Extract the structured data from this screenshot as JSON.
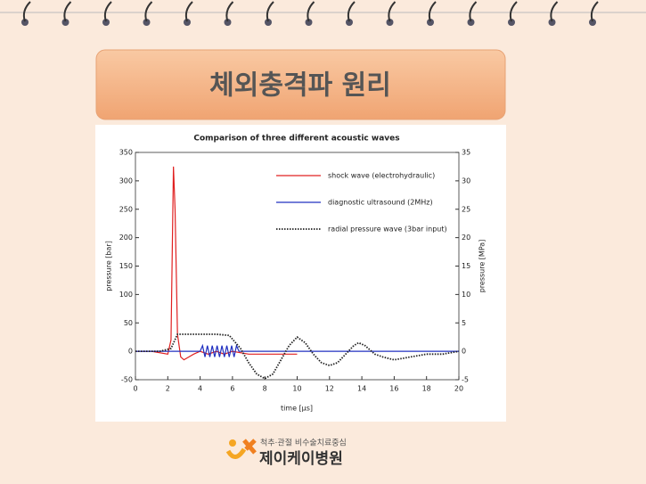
{
  "slide": {
    "title": "체외충격파 원리",
    "logo_tagline": "척추·관절 비수술치료중심",
    "logo_name": "제이케이병원"
  },
  "chart_data": {
    "type": "line",
    "title": "Comparison of three different acoustic waves",
    "x_label": "time [μs]",
    "y_label": "pressure [bar]",
    "y2_label": "pressure [MPa]",
    "xlim": [
      0,
      20
    ],
    "xticks": [
      0,
      2,
      4,
      6,
      8,
      10,
      12,
      14,
      16,
      18,
      20
    ],
    "ylim": [
      -50,
      350
    ],
    "yticks": [
      -50,
      0,
      50,
      100,
      150,
      200,
      250,
      300,
      350
    ],
    "y2lim": [
      -5,
      35
    ],
    "y2ticks": [
      -5,
      0,
      5,
      10,
      15,
      20,
      25,
      30,
      35
    ],
    "legend": "upper right",
    "grid": false,
    "series": [
      {
        "name": "shock wave (electrohydraulic)",
        "color": "#e02020",
        "style": "solid",
        "x": [
          0,
          1,
          2,
          2.2,
          2.35,
          2.45,
          2.6,
          2.8,
          3,
          3.3,
          3.6,
          4,
          4.5,
          5,
          5.5,
          6,
          7,
          8,
          9,
          10
        ],
        "values": [
          0,
          0,
          -5,
          20,
          325,
          250,
          30,
          -10,
          -15,
          -10,
          -5,
          0,
          -5,
          0,
          -5,
          0,
          -5,
          -5,
          -5,
          -5
        ]
      },
      {
        "name": "diagnostic ultrasound (2MHz)",
        "color": "#2030c0",
        "style": "solid",
        "x": [
          0,
          4.0,
          4.15,
          4.3,
          4.45,
          4.6,
          4.75,
          4.9,
          5.05,
          5.2,
          5.35,
          5.5,
          5.65,
          5.8,
          5.95,
          6.1,
          6.25,
          6.4,
          20
        ],
        "values": [
          0,
          0,
          10,
          -10,
          10,
          -10,
          10,
          -10,
          10,
          -10,
          10,
          -10,
          10,
          -10,
          10,
          -10,
          10,
          0,
          0
        ]
      },
      {
        "name": "radial pressure wave (3bar input)",
        "color": "#222222",
        "style": "dotted",
        "x": [
          0,
          1.5,
          2.2,
          2.6,
          3,
          4,
          5,
          5.8,
          6.5,
          7,
          7.5,
          8,
          8.5,
          9,
          9.5,
          10,
          10.5,
          11,
          11.5,
          12,
          12.5,
          13,
          13.5,
          13.8,
          14.2,
          14.8,
          15.3,
          16,
          17,
          18,
          19,
          20
        ],
        "values": [
          0,
          0,
          5,
          30,
          30,
          30,
          30,
          28,
          5,
          -20,
          -40,
          -48,
          -40,
          -15,
          10,
          25,
          15,
          -5,
          -20,
          -25,
          -20,
          -5,
          10,
          15,
          10,
          -5,
          -10,
          -15,
          -10,
          -5,
          -5,
          0
        ]
      }
    ]
  }
}
